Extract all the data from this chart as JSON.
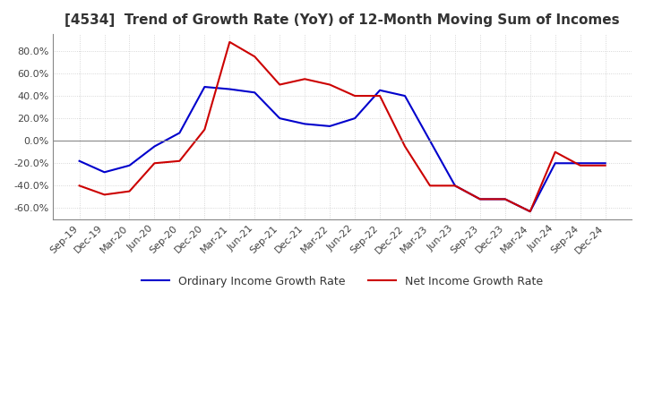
{
  "title": "[4534]  Trend of Growth Rate (YoY) of 12-Month Moving Sum of Incomes",
  "title_fontsize": 11,
  "ylim": [
    -70,
    95
  ],
  "yticks": [
    -60,
    -40,
    -20,
    0,
    20,
    40,
    60,
    80
  ],
  "background_color": "#ffffff",
  "plot_bg_color": "#ffffff",
  "grid_color": "#cccccc",
  "ordinary_color": "#0000cc",
  "net_color": "#cc0000",
  "x_labels": [
    "Sep-19",
    "Dec-19",
    "Mar-20",
    "Jun-20",
    "Sep-20",
    "Dec-20",
    "Mar-21",
    "Jun-21",
    "Sep-21",
    "Dec-21",
    "Mar-22",
    "Jun-22",
    "Sep-22",
    "Dec-22",
    "Mar-23",
    "Jun-23",
    "Sep-23",
    "Dec-23",
    "Mar-24",
    "Jun-24",
    "Sep-24",
    "Dec-24"
  ],
  "ordinary_income_growth": [
    -18,
    -28,
    -22,
    -5,
    7,
    48,
    46,
    43,
    20,
    15,
    13,
    20,
    45,
    40,
    0,
    -40,
    -52,
    -52,
    -63,
    -20,
    -20,
    -20
  ],
  "net_income_growth": [
    -40,
    -48,
    -45,
    -20,
    -18,
    10,
    88,
    75,
    50,
    55,
    50,
    40,
    40,
    -5,
    -40,
    -40,
    -52,
    -52,
    -63,
    -10,
    -22,
    -22
  ]
}
